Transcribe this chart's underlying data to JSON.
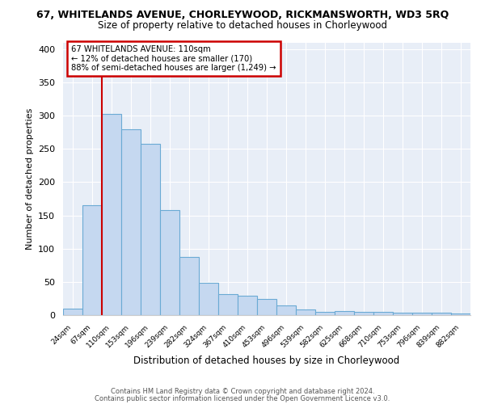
{
  "title_line1": "67, WHITELANDS AVENUE, CHORLEYWOOD, RICKMANSWORTH, WD3 5RQ",
  "title_line2": "Size of property relative to detached houses in Chorleywood",
  "xlabel": "Distribution of detached houses by size in Chorleywood",
  "ylabel": "Number of detached properties",
  "bin_labels": [
    "24sqm",
    "67sqm",
    "110sqm",
    "153sqm",
    "196sqm",
    "239sqm",
    "282sqm",
    "324sqm",
    "367sqm",
    "410sqm",
    "453sqm",
    "496sqm",
    "539sqm",
    "582sqm",
    "625sqm",
    "668sqm",
    "710sqm",
    "753sqm",
    "796sqm",
    "839sqm",
    "882sqm"
  ],
  "bar_values": [
    10,
    165,
    303,
    280,
    258,
    158,
    88,
    48,
    31,
    29,
    24,
    15,
    8,
    5,
    6,
    5,
    5,
    4,
    4,
    4,
    2
  ],
  "bar_color": "#c5d8f0",
  "bar_edge_color": "#6aaad4",
  "red_line_index": 2,
  "red_line_color": "#cc0000",
  "annotation_title": "67 WHITELANDS AVENUE: 110sqm",
  "annotation_line1": "← 12% of detached houses are smaller (170)",
  "annotation_line2": "88% of semi-detached houses are larger (1,249) →",
  "annotation_box_color": "#ffffff",
  "annotation_box_edge": "#cc0000",
  "ylim": [
    0,
    410
  ],
  "yticks": [
    0,
    50,
    100,
    150,
    200,
    250,
    300,
    350,
    400
  ],
  "footer_line1": "Contains HM Land Registry data © Crown copyright and database right 2024.",
  "footer_line2": "Contains public sector information licensed under the Open Government Licence v3.0.",
  "bg_color": "#ffffff",
  "plot_bg_color": "#e8eef7",
  "grid_color": "#ffffff"
}
